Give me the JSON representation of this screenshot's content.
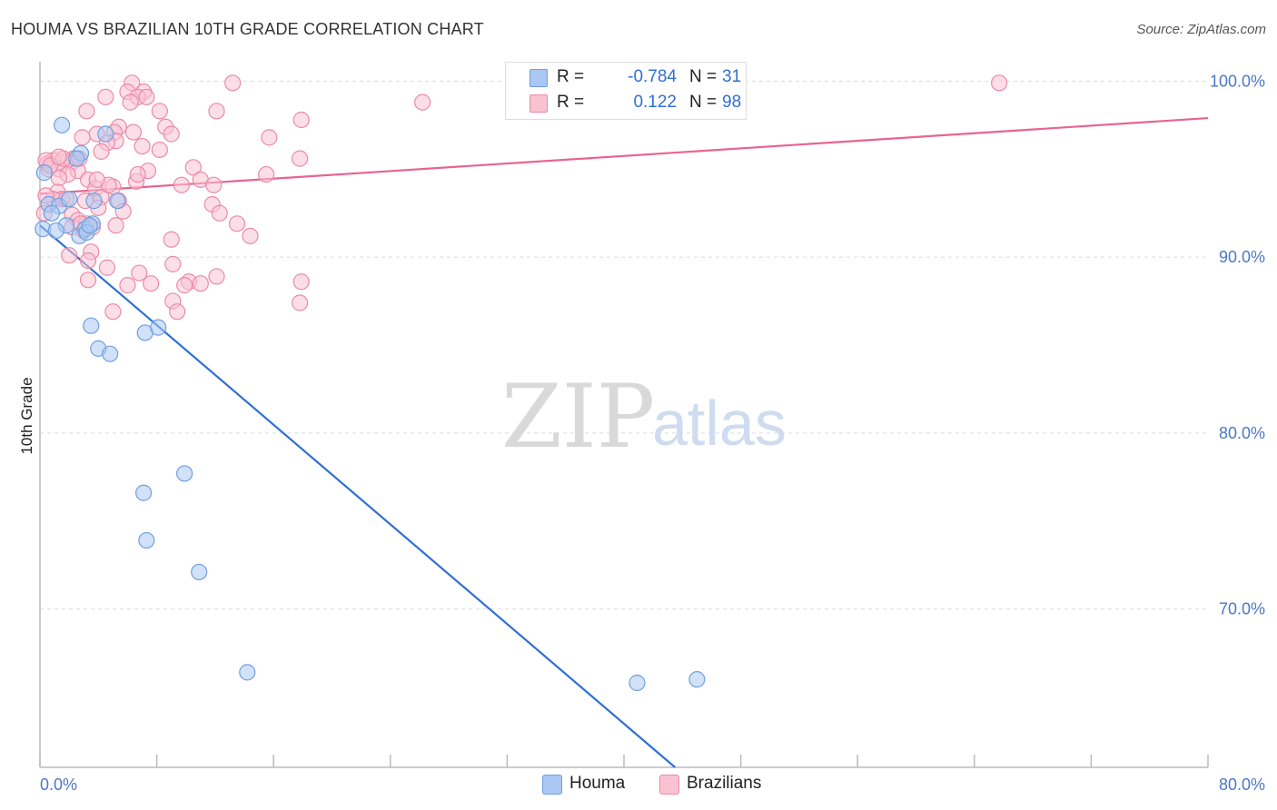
{
  "title": "HOUMA VS BRAZILIAN 10TH GRADE CORRELATION CHART",
  "source": "Source: ZipAtlas.com",
  "watermark": {
    "zip": "ZIP",
    "atlas": "atlas"
  },
  "legend": {
    "rows": [
      {
        "r_label": "R =",
        "r_value": "-0.784",
        "n_label": "N =",
        "n_value": "31",
        "color": "#aac8f3",
        "border": "#6f9fe0"
      },
      {
        "r_label": "R =",
        "r_value": "0.122",
        "n_label": "N =",
        "n_value": "98",
        "color": "#f9c2d3",
        "border": "#ea8aa8"
      }
    ]
  },
  "bottom_legend": [
    {
      "label": "Houma",
      "color": "#aac8f3",
      "border": "#6f9fe0"
    },
    {
      "label": "Brazilians",
      "color": "#f9c2d3",
      "border": "#ea8aa8"
    }
  ],
  "chart_data": {
    "type": "scatter",
    "title": "HOUMA VS BRAZILIAN 10TH GRADE CORRELATION CHART",
    "xlabel": "",
    "ylabel": "10th Grade",
    "xlim": [
      0,
      80
    ],
    "ylim": [
      61,
      101
    ],
    "x_tick_labels": [
      "0.0%",
      "80.0%"
    ],
    "y_ticks": [
      {
        "value": 70,
        "label": "70.0%"
      },
      {
        "value": 80,
        "label": "80.0%"
      },
      {
        "value": 90,
        "label": "90.0%"
      },
      {
        "value": 100,
        "label": "100.0%"
      }
    ],
    "series": [
      {
        "name": "Houma",
        "fill": "#aac8f3",
        "stroke": "#6f9fe0",
        "line_color": "#2f6fd6",
        "trend": {
          "x": [
            0,
            43.5
          ],
          "y": [
            91.8,
            61.0
          ]
        },
        "points": [
          [
            1.5,
            97.5
          ],
          [
            2.8,
            95.9
          ],
          [
            0.3,
            94.8
          ],
          [
            0.6,
            93.0
          ],
          [
            1.3,
            92.9
          ],
          [
            0.8,
            92.5
          ],
          [
            5.3,
            93.2
          ],
          [
            3.7,
            93.2
          ],
          [
            1.8,
            91.8
          ],
          [
            2.7,
            91.2
          ],
          [
            3.1,
            91.6
          ],
          [
            3.6,
            91.9
          ],
          [
            0.2,
            91.6
          ],
          [
            1.1,
            91.5
          ],
          [
            3.2,
            91.4
          ],
          [
            2.0,
            93.3
          ],
          [
            4.5,
            97.0
          ],
          [
            3.4,
            91.8
          ],
          [
            3.5,
            86.1
          ],
          [
            7.2,
            85.7
          ],
          [
            8.1,
            86.0
          ],
          [
            4.0,
            84.8
          ],
          [
            4.8,
            84.5
          ],
          [
            7.1,
            76.6
          ],
          [
            7.3,
            73.9
          ],
          [
            9.9,
            77.7
          ],
          [
            10.9,
            72.1
          ],
          [
            14.2,
            66.4
          ],
          [
            40.9,
            65.8
          ],
          [
            45.0,
            66.0
          ],
          [
            2.5,
            95.6
          ]
        ]
      },
      {
        "name": "Brazilians",
        "fill": "#f9c2d3",
        "stroke": "#ea8aa8",
        "line_color": "#e8648f",
        "trend": {
          "x": [
            0,
            80
          ],
          "y": [
            93.6,
            97.9
          ]
        },
        "points": [
          [
            6.3,
            99.9
          ],
          [
            13.2,
            99.9
          ],
          [
            65.7,
            99.9
          ],
          [
            6.0,
            99.4
          ],
          [
            7.1,
            99.4
          ],
          [
            4.5,
            99.1
          ],
          [
            6.7,
            99.1
          ],
          [
            7.3,
            99.1
          ],
          [
            6.2,
            98.8
          ],
          [
            26.2,
            98.8
          ],
          [
            3.2,
            98.3
          ],
          [
            8.2,
            98.3
          ],
          [
            12.1,
            98.3
          ],
          [
            17.9,
            97.8
          ],
          [
            8.6,
            97.4
          ],
          [
            5.4,
            97.4
          ],
          [
            5.1,
            97.1
          ],
          [
            6.4,
            97.1
          ],
          [
            3.9,
            97.0
          ],
          [
            9.0,
            97.0
          ],
          [
            2.9,
            96.8
          ],
          [
            15.7,
            96.8
          ],
          [
            5.2,
            96.6
          ],
          [
            4.6,
            96.5
          ],
          [
            7.0,
            96.3
          ],
          [
            8.2,
            96.1
          ],
          [
            4.2,
            96.0
          ],
          [
            17.8,
            95.6
          ],
          [
            2.3,
            95.6
          ],
          [
            1.5,
            95.4
          ],
          [
            0.9,
            95.5
          ],
          [
            0.5,
            95.3
          ],
          [
            2.2,
            95.4
          ],
          [
            0.6,
            95.0
          ],
          [
            1.3,
            95.0
          ],
          [
            10.5,
            95.1
          ],
          [
            2.6,
            94.9
          ],
          [
            7.4,
            94.9
          ],
          [
            1.9,
            94.7
          ],
          [
            15.5,
            94.7
          ],
          [
            1.3,
            94.5
          ],
          [
            3.3,
            94.4
          ],
          [
            6.6,
            94.3
          ],
          [
            11.0,
            94.4
          ],
          [
            9.7,
            94.1
          ],
          [
            11.9,
            94.1
          ],
          [
            3.8,
            93.9
          ],
          [
            5.0,
            94.0
          ],
          [
            1.2,
            93.7
          ],
          [
            4.2,
            93.4
          ],
          [
            1.5,
            93.3
          ],
          [
            0.9,
            93.3
          ],
          [
            3.1,
            93.2
          ],
          [
            5.4,
            93.2
          ],
          [
            11.8,
            93.0
          ],
          [
            4.0,
            92.8
          ],
          [
            5.7,
            92.6
          ],
          [
            12.3,
            92.5
          ],
          [
            2.2,
            92.4
          ],
          [
            2.6,
            92.1
          ],
          [
            13.5,
            91.9
          ],
          [
            3.2,
            91.9
          ],
          [
            5.2,
            91.8
          ],
          [
            2.2,
            91.7
          ],
          [
            3.0,
            91.5
          ],
          [
            14.4,
            91.2
          ],
          [
            9.0,
            91.0
          ],
          [
            3.5,
            90.3
          ],
          [
            2.0,
            90.1
          ],
          [
            3.3,
            89.8
          ],
          [
            9.1,
            89.6
          ],
          [
            4.6,
            89.4
          ],
          [
            6.8,
            89.1
          ],
          [
            12.1,
            88.9
          ],
          [
            3.3,
            88.7
          ],
          [
            7.6,
            88.5
          ],
          [
            10.2,
            88.6
          ],
          [
            6.0,
            88.4
          ],
          [
            9.9,
            88.4
          ],
          [
            11.0,
            88.5
          ],
          [
            17.9,
            88.6
          ],
          [
            9.1,
            87.5
          ],
          [
            17.8,
            87.4
          ],
          [
            5.0,
            86.9
          ],
          [
            9.4,
            86.9
          ],
          [
            0.4,
            93.5
          ],
          [
            1.8,
            93.3
          ],
          [
            0.3,
            92.5
          ],
          [
            0.4,
            95.5
          ],
          [
            1.6,
            95.6
          ],
          [
            2.7,
            95.6
          ],
          [
            0.7,
            95.2
          ],
          [
            1.3,
            95.7
          ],
          [
            4.7,
            94.1
          ],
          [
            3.9,
            94.4
          ],
          [
            6.7,
            94.7
          ],
          [
            3.6,
            91.7
          ],
          [
            2.8,
            91.9
          ]
        ]
      }
    ]
  }
}
